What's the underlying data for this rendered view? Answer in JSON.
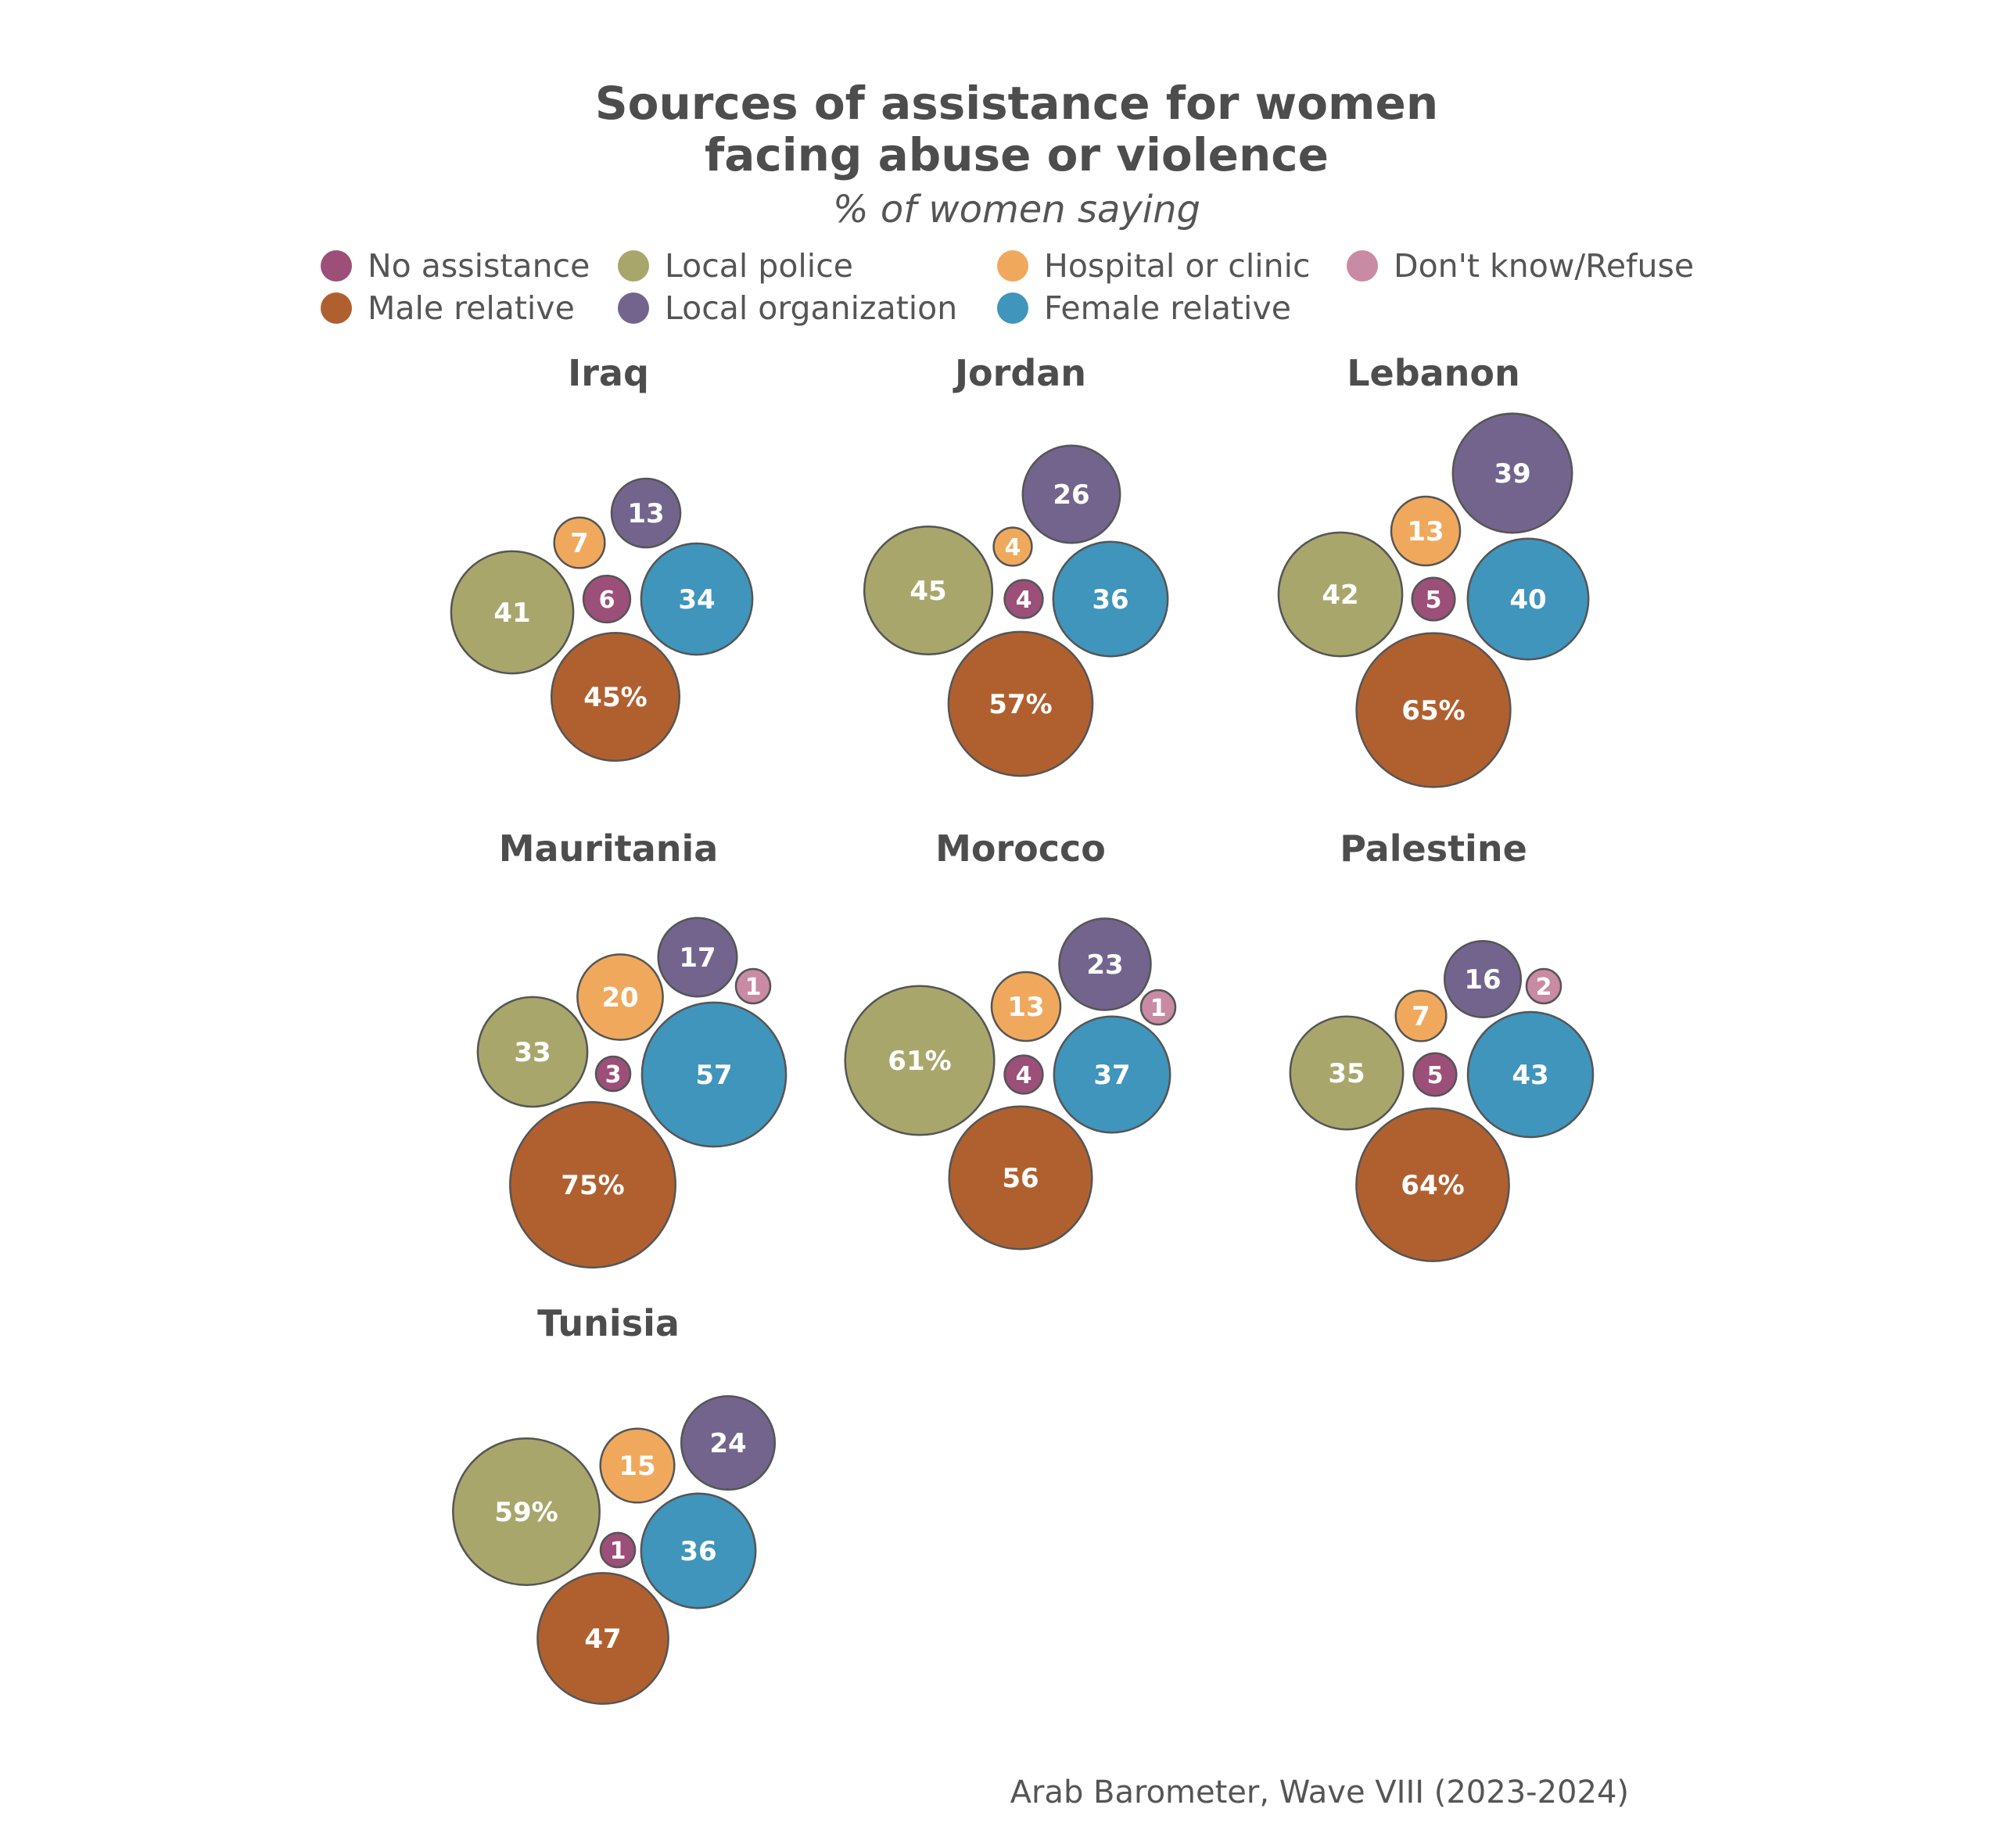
{
  "chart_data": {
    "type": "bubble",
    "title": [
      "Sources of assistance for women",
      "facing abuse or violence"
    ],
    "subtitle": "% of women saying",
    "caption": "Arab Barometer, Wave VIII (2023-2024)",
    "legend_placement": "top",
    "legend": [
      {
        "key": "no_assistance",
        "label": "No assistance",
        "color": "#9c4f78"
      },
      {
        "key": "local_police",
        "label": "Local police",
        "color": "#a9a66b"
      },
      {
        "key": "hospital",
        "label": "Hospital or clinic",
        "color": "#f0a95c"
      },
      {
        "key": "dont_know",
        "label": "Don't know/Refuse",
        "color": "#c98aa4"
      },
      {
        "key": "male_relative",
        "label": "Male relative",
        "color": "#b0602f"
      },
      {
        "key": "local_org",
        "label": "Local organization",
        "color": "#73648e"
      },
      {
        "key": "female_relative",
        "label": "Female relative",
        "color": "#3f95bb"
      }
    ],
    "panels": [
      {
        "country": "Iraq",
        "values": {
          "no_assistance": "6",
          "local_police": "41",
          "hospital": "7",
          "male_relative": "45%",
          "local_org": "13",
          "female_relative": "34"
        }
      },
      {
        "country": "Jordan",
        "values": {
          "no_assistance": "4",
          "local_police": "45",
          "hospital": "4",
          "male_relative": "57%",
          "local_org": "26",
          "female_relative": "36"
        }
      },
      {
        "country": "Lebanon",
        "values": {
          "no_assistance": "5",
          "local_police": "42",
          "hospital": "13",
          "male_relative": "65%",
          "local_org": "39",
          "female_relative": "40"
        }
      },
      {
        "country": "Mauritania",
        "values": {
          "no_assistance": "3",
          "local_police": "33",
          "hospital": "20",
          "dont_know": "1",
          "male_relative": "75%",
          "local_org": "17",
          "female_relative": "57"
        }
      },
      {
        "country": "Morocco",
        "values": {
          "no_assistance": "4",
          "local_police": "61%",
          "hospital": "13",
          "dont_know": "1",
          "male_relative": "56",
          "local_org": "23",
          "female_relative": "37"
        }
      },
      {
        "country": "Palestine",
        "values": {
          "no_assistance": "5",
          "local_police": "35",
          "hospital": "7",
          "dont_know": "2",
          "male_relative": "64%",
          "local_org": "16",
          "female_relative": "43"
        }
      },
      {
        "country": "Tunisia",
        "values": {
          "no_assistance": "1",
          "local_police": "59%",
          "hospital": "15",
          "male_relative": "47",
          "local_org": "24",
          "female_relative": "36"
        }
      }
    ]
  }
}
